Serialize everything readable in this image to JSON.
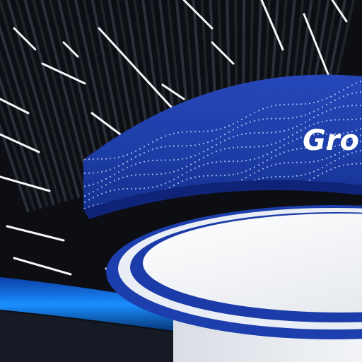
{
  "scene": {
    "sign": {
      "text": "Gro"
    },
    "colors": {
      "ceiling": "#0c0e13",
      "slat": "#1e2127",
      "light_strip": "#f4f6fa",
      "drum_blue": "#1d3fae",
      "drum_dark": "#0f2478",
      "inner_panel": "#f2f4f8",
      "accent_blue": "#1a8fff",
      "wall": "#e6e9ee"
    }
  }
}
